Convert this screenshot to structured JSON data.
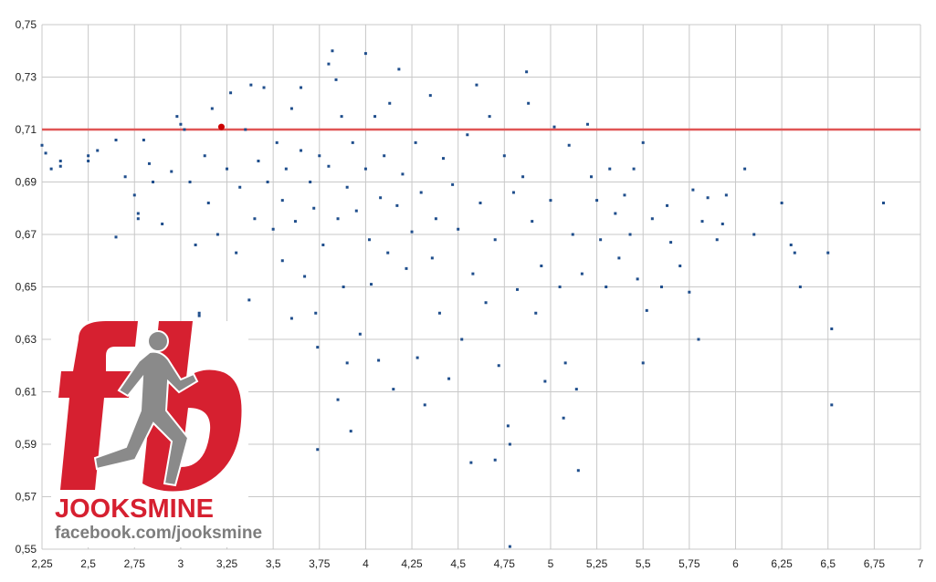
{
  "chart_data": {
    "type": "scatter",
    "title": "",
    "xlabel": "",
    "ylabel": "",
    "xlim": [
      2.25,
      7
    ],
    "ylim": [
      0.55,
      0.75
    ],
    "x_ticks": [
      "2,25",
      "2,5",
      "2,75",
      "3",
      "3,25",
      "3,5",
      "3,75",
      "4",
      "4,25",
      "4,5",
      "4,75",
      "5",
      "5,25",
      "5,5",
      "5,75",
      "6",
      "6,25",
      "6,5",
      "6,75",
      "7"
    ],
    "y_ticks": [
      "0,75",
      "0,73",
      "0,71",
      "0,69",
      "0,67",
      "0,65",
      "0,63",
      "0,61",
      "0,59",
      "0,57",
      "0,55"
    ],
    "grid": true,
    "reference_line": {
      "y": 0.71,
      "color": "#e05555"
    },
    "highlight_point": {
      "x": 3.22,
      "y": 0.711,
      "color": "#cc0000"
    },
    "point_color": "#1f4e8c",
    "points": [
      [
        2.25,
        0.704
      ],
      [
        2.27,
        0.701
      ],
      [
        2.3,
        0.695
      ],
      [
        2.35,
        0.698
      ],
      [
        2.35,
        0.696
      ],
      [
        2.5,
        0.7
      ],
      [
        2.5,
        0.698
      ],
      [
        2.55,
        0.702
      ],
      [
        2.65,
        0.706
      ],
      [
        2.65,
        0.669
      ],
      [
        2.7,
        0.692
      ],
      [
        2.75,
        0.685
      ],
      [
        2.77,
        0.678
      ],
      [
        2.77,
        0.676
      ],
      [
        2.8,
        0.706
      ],
      [
        2.83,
        0.697
      ],
      [
        2.85,
        0.69
      ],
      [
        2.9,
        0.674
      ],
      [
        2.95,
        0.694
      ],
      [
        2.98,
        0.715
      ],
      [
        3.0,
        0.712
      ],
      [
        3.02,
        0.71
      ],
      [
        3.05,
        0.69
      ],
      [
        3.08,
        0.666
      ],
      [
        3.1,
        0.64
      ],
      [
        3.1,
        0.639
      ],
      [
        3.13,
        0.7
      ],
      [
        3.15,
        0.682
      ],
      [
        3.17,
        0.718
      ],
      [
        3.2,
        0.67
      ],
      [
        3.25,
        0.695
      ],
      [
        3.27,
        0.724
      ],
      [
        3.3,
        0.663
      ],
      [
        3.32,
        0.688
      ],
      [
        3.35,
        0.71
      ],
      [
        3.37,
        0.645
      ],
      [
        3.38,
        0.727
      ],
      [
        3.4,
        0.676
      ],
      [
        3.42,
        0.698
      ],
      [
        3.45,
        0.726
      ],
      [
        3.47,
        0.69
      ],
      [
        3.5,
        0.672
      ],
      [
        3.52,
        0.705
      ],
      [
        3.55,
        0.66
      ],
      [
        3.55,
        0.683
      ],
      [
        3.57,
        0.695
      ],
      [
        3.6,
        0.638
      ],
      [
        3.6,
        0.718
      ],
      [
        3.62,
        0.675
      ],
      [
        3.65,
        0.702
      ],
      [
        3.65,
        0.726
      ],
      [
        3.67,
        0.654
      ],
      [
        3.7,
        0.69
      ],
      [
        3.72,
        0.68
      ],
      [
        3.73,
        0.64
      ],
      [
        3.74,
        0.627
      ],
      [
        3.74,
        0.588
      ],
      [
        3.75,
        0.7
      ],
      [
        3.77,
        0.666
      ],
      [
        3.8,
        0.735
      ],
      [
        3.8,
        0.696
      ],
      [
        3.82,
        0.74
      ],
      [
        3.84,
        0.729
      ],
      [
        3.85,
        0.676
      ],
      [
        3.85,
        0.607
      ],
      [
        3.87,
        0.715
      ],
      [
        3.88,
        0.65
      ],
      [
        3.9,
        0.688
      ],
      [
        3.9,
        0.621
      ],
      [
        3.92,
        0.595
      ],
      [
        3.93,
        0.705
      ],
      [
        3.95,
        0.679
      ],
      [
        3.97,
        0.632
      ],
      [
        4.0,
        0.739
      ],
      [
        4.0,
        0.695
      ],
      [
        4.02,
        0.668
      ],
      [
        4.03,
        0.651
      ],
      [
        4.05,
        0.715
      ],
      [
        4.07,
        0.622
      ],
      [
        4.08,
        0.684
      ],
      [
        4.1,
        0.7
      ],
      [
        4.12,
        0.663
      ],
      [
        4.13,
        0.72
      ],
      [
        4.15,
        0.611
      ],
      [
        4.17,
        0.681
      ],
      [
        4.18,
        0.733
      ],
      [
        4.2,
        0.693
      ],
      [
        4.22,
        0.657
      ],
      [
        4.25,
        0.671
      ],
      [
        4.27,
        0.705
      ],
      [
        4.28,
        0.623
      ],
      [
        4.3,
        0.686
      ],
      [
        4.32,
        0.605
      ],
      [
        4.35,
        0.723
      ],
      [
        4.36,
        0.661
      ],
      [
        4.38,
        0.676
      ],
      [
        4.4,
        0.64
      ],
      [
        4.42,
        0.699
      ],
      [
        4.45,
        0.615
      ],
      [
        4.47,
        0.689
      ],
      [
        4.5,
        0.672
      ],
      [
        4.52,
        0.63
      ],
      [
        4.55,
        0.708
      ],
      [
        4.57,
        0.583
      ],
      [
        4.58,
        0.655
      ],
      [
        4.6,
        0.727
      ],
      [
        4.62,
        0.682
      ],
      [
        4.65,
        0.644
      ],
      [
        4.67,
        0.715
      ],
      [
        4.7,
        0.584
      ],
      [
        4.7,
        0.668
      ],
      [
        4.72,
        0.62
      ],
      [
        4.75,
        0.7
      ],
      [
        4.77,
        0.597
      ],
      [
        4.78,
        0.59
      ],
      [
        4.78,
        0.551
      ],
      [
        4.8,
        0.686
      ],
      [
        4.82,
        0.649
      ],
      [
        4.85,
        0.692
      ],
      [
        4.87,
        0.732
      ],
      [
        4.88,
        0.72
      ],
      [
        4.9,
        0.675
      ],
      [
        4.92,
        0.64
      ],
      [
        4.95,
        0.658
      ],
      [
        4.97,
        0.614
      ],
      [
        5.0,
        0.683
      ],
      [
        5.02,
        0.711
      ],
      [
        5.05,
        0.65
      ],
      [
        5.07,
        0.6
      ],
      [
        5.08,
        0.621
      ],
      [
        5.1,
        0.704
      ],
      [
        5.12,
        0.67
      ],
      [
        5.14,
        0.611
      ],
      [
        5.15,
        0.58
      ],
      [
        5.17,
        0.655
      ],
      [
        5.2,
        0.712
      ],
      [
        5.22,
        0.692
      ],
      [
        5.25,
        0.683
      ],
      [
        5.27,
        0.668
      ],
      [
        5.3,
        0.65
      ],
      [
        5.32,
        0.695
      ],
      [
        5.35,
        0.678
      ],
      [
        5.37,
        0.661
      ],
      [
        5.4,
        0.685
      ],
      [
        5.43,
        0.67
      ],
      [
        5.45,
        0.695
      ],
      [
        5.47,
        0.653
      ],
      [
        5.5,
        0.705
      ],
      [
        5.5,
        0.621
      ],
      [
        5.52,
        0.641
      ],
      [
        5.55,
        0.676
      ],
      [
        5.6,
        0.65
      ],
      [
        5.63,
        0.681
      ],
      [
        5.65,
        0.667
      ],
      [
        5.7,
        0.658
      ],
      [
        5.75,
        0.648
      ],
      [
        5.77,
        0.687
      ],
      [
        5.8,
        0.63
      ],
      [
        5.82,
        0.675
      ],
      [
        5.85,
        0.684
      ],
      [
        5.9,
        0.668
      ],
      [
        5.93,
        0.674
      ],
      [
        5.95,
        0.685
      ],
      [
        6.05,
        0.695
      ],
      [
        6.1,
        0.67
      ],
      [
        6.25,
        0.682
      ],
      [
        6.3,
        0.666
      ],
      [
        6.32,
        0.663
      ],
      [
        6.35,
        0.65
      ],
      [
        6.5,
        0.663
      ],
      [
        6.52,
        0.634
      ],
      [
        6.52,
        0.605
      ],
      [
        6.8,
        0.682
      ]
    ],
    "logo": {
      "name": "JOOKSMINE",
      "url": "facebook.com/jooksmine",
      "mark": "fb"
    }
  }
}
